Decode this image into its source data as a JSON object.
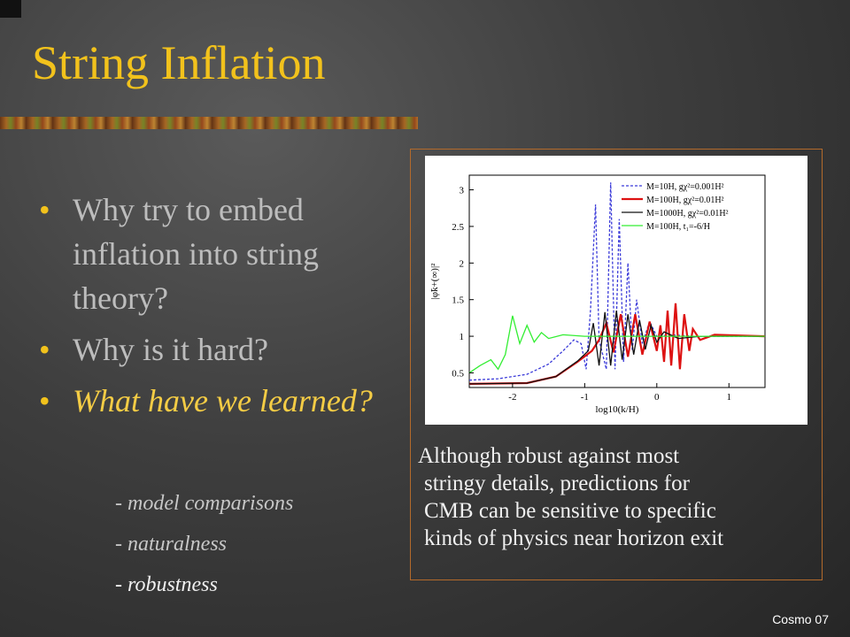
{
  "slide": {
    "title": "String Inflation",
    "footer": "Cosmo 07",
    "bullets": [
      "Why try to embed inflation into string theory?",
      "Why is it hard?",
      "What have we learned?"
    ],
    "bullet_glyph": "•",
    "sub_items": [
      "- model comparisons",
      "- naturalness",
      "- robustness"
    ],
    "caption_lines": [
      "Although robust against most",
      "stringy details, predictions for",
      "CMB can be sensitive to specific",
      "kinds of physics near horizon exit"
    ]
  },
  "colors": {
    "title": "#f2c21c",
    "bullet_text": "#bdbdbd",
    "emphasis": "#f4cc45",
    "frame": "#b36a2b"
  },
  "chart_data": {
    "type": "line",
    "xlabel": "log10(k/H)",
    "ylabel": "|φ̃k+(∞)|²",
    "xlim": [
      -2.6,
      1.5
    ],
    "ylim": [
      0.3,
      3.2
    ],
    "x_ticks": [
      "-2",
      "-1",
      "0",
      "1"
    ],
    "y_ticks": [
      "0.5",
      "1",
      "1.5",
      "2",
      "2.5",
      "3"
    ],
    "legend_position": "top-right",
    "legend": [
      "M=10H,     gχ²=0.001H²",
      "M=100H,   gχ²=0.01H²",
      "M=1000H, gχ²=0.01H²",
      "M=100H,   t₁=-6/H"
    ],
    "series": [
      {
        "name": "M=10H, gχ²=0.001H²",
        "color": "#3b3bd9",
        "dash": true,
        "points": [
          [
            -2.6,
            0.4
          ],
          [
            -2.2,
            0.42
          ],
          [
            -1.8,
            0.48
          ],
          [
            -1.5,
            0.62
          ],
          [
            -1.3,
            0.8
          ],
          [
            -1.15,
            0.95
          ],
          [
            -1.05,
            0.9
          ],
          [
            -0.98,
            0.55
          ],
          [
            -0.92,
            1.35
          ],
          [
            -0.85,
            2.8
          ],
          [
            -0.8,
            0.95
          ],
          [
            -0.7,
            0.55
          ],
          [
            -0.64,
            3.1
          ],
          [
            -0.58,
            0.55
          ],
          [
            -0.52,
            2.6
          ],
          [
            -0.46,
            0.65
          ],
          [
            -0.4,
            2.0
          ],
          [
            -0.34,
            0.8
          ],
          [
            -0.28,
            1.5
          ],
          [
            -0.2,
            0.9
          ],
          [
            -0.1,
            1.2
          ],
          [
            0.0,
            1.0
          ],
          [
            0.2,
            1.02
          ],
          [
            0.5,
            1.0
          ],
          [
            1.5,
            1.0
          ]
        ]
      },
      {
        "name": "M=100H, gχ²=0.01H²",
        "color": "#dd1111",
        "dash": false,
        "points": [
          [
            -2.6,
            0.35
          ],
          [
            -1.8,
            0.36
          ],
          [
            -1.4,
            0.45
          ],
          [
            -1.1,
            0.65
          ],
          [
            -0.9,
            0.8
          ],
          [
            -0.8,
            0.95
          ],
          [
            -0.7,
            1.18
          ],
          [
            -0.6,
            0.78
          ],
          [
            -0.5,
            1.3
          ],
          [
            -0.4,
            0.72
          ],
          [
            -0.3,
            1.3
          ],
          [
            -0.2,
            0.75
          ],
          [
            -0.1,
            1.2
          ],
          [
            0.0,
            0.8
          ],
          [
            0.05,
            1.15
          ],
          [
            0.1,
            0.65
          ],
          [
            0.15,
            1.35
          ],
          [
            0.2,
            0.6
          ],
          [
            0.26,
            1.45
          ],
          [
            0.32,
            0.55
          ],
          [
            0.38,
            1.3
          ],
          [
            0.45,
            0.8
          ],
          [
            0.5,
            1.1
          ],
          [
            0.6,
            0.95
          ],
          [
            0.8,
            1.02
          ],
          [
            1.5,
            1.0
          ]
        ]
      },
      {
        "name": "M=1000H, gχ²=0.01H²",
        "color": "#111111",
        "dash": false,
        "points": [
          [
            -2.6,
            0.35
          ],
          [
            -1.8,
            0.36
          ],
          [
            -1.4,
            0.45
          ],
          [
            -1.1,
            0.66
          ],
          [
            -0.95,
            0.8
          ],
          [
            -0.88,
            1.18
          ],
          [
            -0.8,
            0.6
          ],
          [
            -0.72,
            1.33
          ],
          [
            -0.64,
            0.6
          ],
          [
            -0.56,
            1.35
          ],
          [
            -0.48,
            0.68
          ],
          [
            -0.4,
            1.3
          ],
          [
            -0.32,
            0.75
          ],
          [
            -0.24,
            1.22
          ],
          [
            -0.16,
            0.82
          ],
          [
            -0.08,
            1.15
          ],
          [
            0.0,
            0.92
          ],
          [
            0.1,
            1.06
          ],
          [
            0.3,
            0.97
          ],
          [
            0.6,
            1.0
          ],
          [
            1.5,
            1.0
          ]
        ]
      },
      {
        "name": "M=100H, t₁=-6/H",
        "color": "#33ee33",
        "dash": false,
        "points": [
          [
            -2.6,
            0.5
          ],
          [
            -2.45,
            0.6
          ],
          [
            -2.3,
            0.68
          ],
          [
            -2.2,
            0.55
          ],
          [
            -2.1,
            0.75
          ],
          [
            -2.0,
            1.28
          ],
          [
            -1.9,
            0.9
          ],
          [
            -1.8,
            1.15
          ],
          [
            -1.7,
            0.92
          ],
          [
            -1.6,
            1.05
          ],
          [
            -1.5,
            0.97
          ],
          [
            -1.3,
            1.02
          ],
          [
            -1.0,
            1.0
          ],
          [
            1.5,
            1.0
          ]
        ]
      }
    ]
  }
}
